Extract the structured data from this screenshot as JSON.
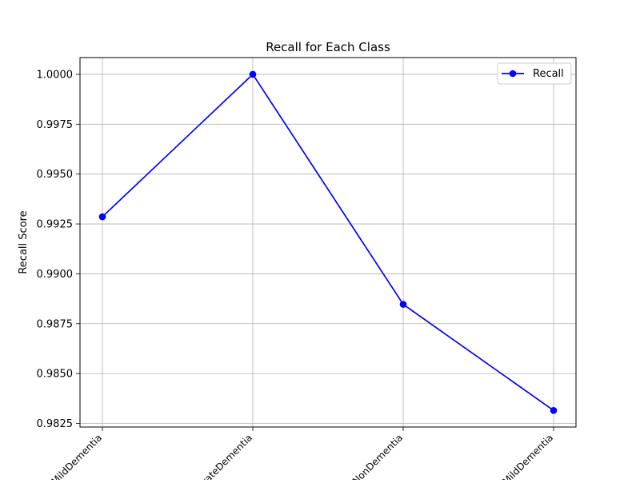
{
  "chart_data": {
    "type": "line",
    "title": "Recall for Each Class",
    "xlabel": "",
    "ylabel": "Recall Score",
    "categories": [
      "MildDementia",
      "ModerateDementia",
      "NonDementia",
      "VeryMildDementia"
    ],
    "series": [
      {
        "name": "Recall",
        "values": [
          0.99286,
          1.0,
          0.98847,
          0.98315
        ],
        "color": "#0000ff",
        "marker": "circle"
      }
    ],
    "ylim": [
      0.98232,
      1.00084
    ],
    "yticks": [
      "0.9825",
      "0.9850",
      "0.9875",
      "0.9900",
      "0.9925",
      "0.9950",
      "0.9975",
      "1.0000"
    ],
    "grid": true,
    "legend_position": "top-right",
    "tick_label_rotation": 45
  }
}
